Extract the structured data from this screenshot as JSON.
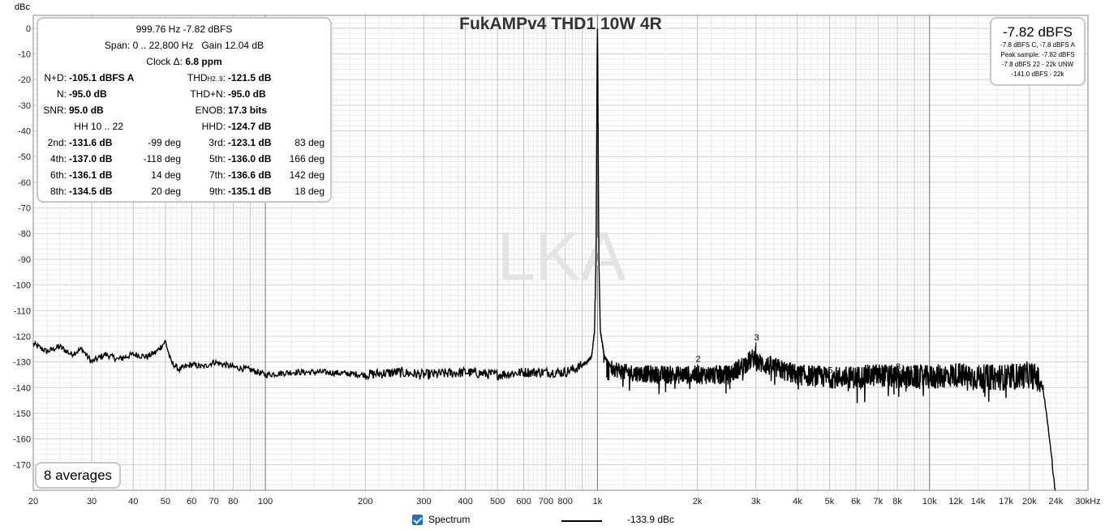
{
  "chart_data": {
    "type": "line",
    "title": "FukAMPv4 THD1 10W 4R",
    "ylabel": "dBc",
    "xlabel": "",
    "x_scale": "log",
    "xlim": [
      20,
      30000
    ],
    "ylim": [
      -180,
      5
    ],
    "y_ticks": [
      0,
      -10,
      -20,
      -30,
      -40,
      -50,
      -60,
      -70,
      -80,
      -90,
      -100,
      -110,
      -120,
      -130,
      -140,
      -150,
      -160,
      -170
    ],
    "x_ticks": [
      {
        "v": 20,
        "t": "20"
      },
      {
        "v": 30,
        "t": "30"
      },
      {
        "v": 40,
        "t": "40"
      },
      {
        "v": 50,
        "t": "50"
      },
      {
        "v": 60,
        "t": "60"
      },
      {
        "v": 70,
        "t": "70"
      },
      {
        "v": 80,
        "t": "80"
      },
      {
        "v": 100,
        "t": "100"
      },
      {
        "v": 200,
        "t": "200"
      },
      {
        "v": 300,
        "t": "300"
      },
      {
        "v": 400,
        "t": "400"
      },
      {
        "v": 500,
        "t": "500"
      },
      {
        "v": 600,
        "t": "600"
      },
      {
        "v": 700,
        "t": "700"
      },
      {
        "v": 800,
        "t": "800"
      },
      {
        "v": 1000,
        "t": "1k"
      },
      {
        "v": 2000,
        "t": "2k"
      },
      {
        "v": 3000,
        "t": "3k"
      },
      {
        "v": 4000,
        "t": "4k"
      },
      {
        "v": 5000,
        "t": "5k"
      },
      {
        "v": 6000,
        "t": "6k"
      },
      {
        "v": 7000,
        "t": "7k"
      },
      {
        "v": 8000,
        "t": "8k"
      },
      {
        "v": 10000,
        "t": "10k"
      },
      {
        "v": 12000,
        "t": "12k"
      },
      {
        "v": 14000,
        "t": "14k"
      },
      {
        "v": 17000,
        "t": "17k"
      },
      {
        "v": 20000,
        "t": "20k"
      },
      {
        "v": 24000,
        "t": "24k"
      },
      {
        "v": 30000,
        "t": "30kHz"
      }
    ],
    "grid": true,
    "watermark": "LKA",
    "series": [
      {
        "name": "Spectrum",
        "color": "#000000",
        "x": [
          20,
          22,
          24,
          26,
          28,
          30,
          33,
          36,
          40,
          44,
          47,
          50,
          52,
          55,
          60,
          65,
          70,
          80,
          90,
          100,
          120,
          150,
          200,
          250,
          300,
          400,
          500,
          600,
          700,
          800,
          880,
          930,
          960,
          980,
          990,
          995,
          998,
          1000,
          1002,
          1005,
          1010,
          1020,
          1050,
          1100,
          1200,
          1500,
          1800,
          2000,
          2500,
          2990,
          3000,
          3010,
          4000,
          5000,
          6000,
          7000,
          8000,
          9000,
          10000,
          12000,
          14000,
          17000,
          20000,
          21000,
          22000,
          22500,
          23000,
          23500,
          24000
        ],
        "y": [
          -123,
          -126,
          -124,
          -127,
          -125,
          -130,
          -127,
          -129,
          -127,
          -128,
          -126,
          -122,
          -130,
          -133,
          -131,
          -132,
          -130,
          -132,
          -133,
          -135,
          -134,
          -134,
          -135,
          -134,
          -135,
          -134,
          -135,
          -134,
          -134,
          -134,
          -132,
          -130,
          -128,
          -118,
          -90,
          -40,
          -10,
          0,
          -10,
          -40,
          -90,
          -118,
          -128,
          -132,
          -134,
          -135,
          -135,
          -135,
          -135,
          -128,
          -123,
          -130,
          -135,
          -136,
          -136,
          -135,
          -136,
          -136,
          -136,
          -135,
          -136,
          -136,
          -135,
          -136,
          -140,
          -150,
          -160,
          -172,
          -182
        ]
      }
    ],
    "harmonic_markers": [
      {
        "label": "2",
        "x": 2000,
        "y": -131.6
      },
      {
        "label": "3",
        "x": 3000,
        "y": -123.1
      },
      {
        "label": "4",
        "x": 4000,
        "y": -137.0
      },
      {
        "label": "5",
        "x": 5000,
        "y": -136.0
      },
      {
        "label": "6",
        "x": 6000,
        "y": -136.1
      },
      {
        "label": "7",
        "x": 7000,
        "y": -136.6
      },
      {
        "label": "8",
        "x": 8000,
        "y": -134.5
      },
      {
        "label": "9",
        "x": 9000,
        "y": -135.1
      }
    ]
  },
  "stats": {
    "freq_level": "999.76 Hz  -7.82 dBFS",
    "span_label": "Span:",
    "span_value": "0 .. 22,800 Hz",
    "gain_label": "Gain",
    "gain_value": "12.04 dB",
    "clock_label": "Clock Δ:",
    "clock_value": "6.8 ppm",
    "rows": [
      {
        "l1": "N+D:",
        "v1": "-105.1 dBFS A",
        "d1": "",
        "l2": "THD",
        "l2sub": "H2..9",
        "l2end": ":",
        "v2": "-121.5 dB",
        "d2": ""
      },
      {
        "l1": "N:",
        "v1": "-95.0 dB",
        "d1": "",
        "l2": "THD+N:",
        "l2sub": "",
        "l2end": "",
        "v2": "-95.0 dB",
        "d2": ""
      },
      {
        "l1": "SNR:",
        "v1": "95.0 dB",
        "d1": "",
        "l2": "ENOB:",
        "l2sub": "",
        "l2end": "",
        "v2": "17.3 bits",
        "d2": ""
      },
      {
        "l1": "HH 10 .. 22",
        "v1": "",
        "d1": "",
        "l2": "HHD:",
        "l2sub": "",
        "l2end": "",
        "v2": "-124.7 dB",
        "d2": ""
      },
      {
        "l1": "2nd:",
        "v1": "-131.6 dB",
        "d1": "-99 deg",
        "l2": "3rd:",
        "l2sub": "",
        "l2end": "",
        "v2": "-123.1 dB",
        "d2": "83 deg"
      },
      {
        "l1": "4th:",
        "v1": "-137.0 dB",
        "d1": "-118 deg",
        "l2": "5th:",
        "l2sub": "",
        "l2end": "",
        "v2": "-136.0 dB",
        "d2": "166 deg"
      },
      {
        "l1": "6th:",
        "v1": "-136.1 dB",
        "d1": "14 deg",
        "l2": "7th:",
        "l2sub": "",
        "l2end": "",
        "v2": "-136.6 dB",
        "d2": "142 deg"
      },
      {
        "l1": "8th:",
        "v1": "-134.5 dB",
        "d1": "20 deg",
        "l2": "9th:",
        "l2sub": "",
        "l2end": "",
        "v2": "-135.1 dB",
        "d2": "18 deg"
      }
    ]
  },
  "level_panel": {
    "main": "-7.82 dBFS",
    "lines": [
      "-7.8 dBFS C, -7.8 dBFS A",
      "Peak sample: -7.82 dBFS",
      "-7.8 dBFS 22 - 22k UNW",
      "-141.0 dBFS - 22k"
    ]
  },
  "averages": "8 averages",
  "legend": {
    "checkbox_label": "Spectrum",
    "checked": true,
    "readout": "-133.9 dBc",
    "line_color": "#000000"
  }
}
